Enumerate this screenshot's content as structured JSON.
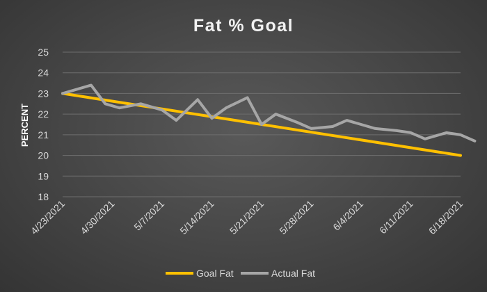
{
  "chart_data": {
    "type": "line",
    "title": "Fat % Goal",
    "xlabel": "",
    "ylabel": "PERCENT",
    "ylim": [
      18,
      25
    ],
    "yticks": [
      18,
      19,
      20,
      21,
      22,
      23,
      24,
      25
    ],
    "x_range": [
      "4/23/2021",
      "6/18/2021"
    ],
    "xtick_labels": [
      "4/23/2021",
      "4/30/2021",
      "5/7/2021",
      "5/14/2021",
      "5/21/2021",
      "5/28/2021",
      "6/4/2021",
      "6/11/2021",
      "6/18/2021"
    ],
    "grid": true,
    "legend_position": "bottom",
    "series": [
      {
        "name": "Goal Fat",
        "color": "#FFC000",
        "points": [
          {
            "x": "4/23/2021",
            "y": 23.0
          },
          {
            "x": "6/18/2021",
            "y": 20.0
          }
        ]
      },
      {
        "name": "Actual Fat",
        "color": "#A6A6A6",
        "points": [
          {
            "x": "4/23/2021",
            "y": 23.0
          },
          {
            "x": "4/27/2021",
            "y": 23.4
          },
          {
            "x": "4/29/2021",
            "y": 22.5
          },
          {
            "x": "5/1/2021",
            "y": 22.3
          },
          {
            "x": "5/4/2021",
            "y": 22.5
          },
          {
            "x": "5/7/2021",
            "y": 22.2
          },
          {
            "x": "5/9/2021",
            "y": 21.7
          },
          {
            "x": "5/12/2021",
            "y": 22.7
          },
          {
            "x": "5/14/2021",
            "y": 21.8
          },
          {
            "x": "5/16/2021",
            "y": 22.3
          },
          {
            "x": "5/19/2021",
            "y": 22.8
          },
          {
            "x": "5/21/2021",
            "y": 21.5
          },
          {
            "x": "5/23/2021",
            "y": 22.0
          },
          {
            "x": "5/26/2021",
            "y": 21.6
          },
          {
            "x": "5/28/2021",
            "y": 21.3
          },
          {
            "x": "5/31/2021",
            "y": 21.4
          },
          {
            "x": "6/2/2021",
            "y": 21.7
          },
          {
            "x": "6/4/2021",
            "y": 21.5
          },
          {
            "x": "6/6/2021",
            "y": 21.3
          },
          {
            "x": "6/9/2021",
            "y": 21.2
          },
          {
            "x": "6/11/2021",
            "y": 21.1
          },
          {
            "x": "6/13/2021",
            "y": 20.8
          },
          {
            "x": "6/16/2021",
            "y": 21.1
          },
          {
            "x": "6/18/2021",
            "y": 21.0
          },
          {
            "x": "6/20/2021",
            "y": 20.7
          }
        ]
      }
    ]
  }
}
